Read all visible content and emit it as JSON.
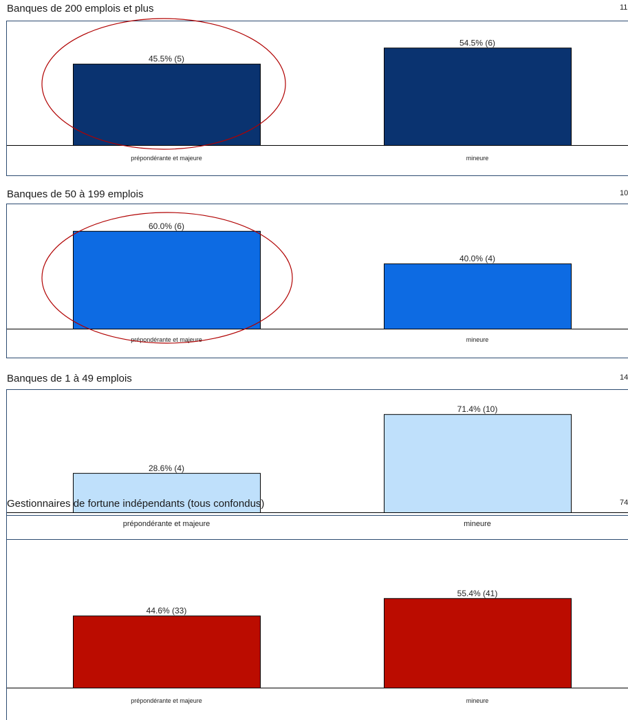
{
  "colors": {
    "frame": "#2b4a70",
    "axis": "#000000",
    "annotation": "#b00000"
  },
  "chart_data": [
    {
      "type": "bar",
      "title": "Banques de 200 emplois et plus",
      "n_label": "11",
      "categories": [
        "prépondérante et majeure",
        "mineure"
      ],
      "values": [
        45.5,
        54.5
      ],
      "counts": [
        5,
        6
      ],
      "labels": [
        "45.5% (5)",
        "54.5% (6)"
      ],
      "color": "#0a3370",
      "circled": true
    },
    {
      "type": "bar",
      "title": "Banques de 50 à 199 emplois",
      "n_label": "10",
      "categories": [
        "prépondérante et majeure",
        "mineure"
      ],
      "values": [
        60.0,
        40.0
      ],
      "counts": [
        6,
        4
      ],
      "labels": [
        "60.0% (6)",
        "40.0% (4)"
      ],
      "color": "#0d6be3",
      "circled": true
    },
    {
      "type": "bar",
      "title": "Banques de 1 à 49 emplois",
      "n_label": "14",
      "categories": [
        "prépondérante et majeure",
        "mineure"
      ],
      "values": [
        28.6,
        71.4
      ],
      "counts": [
        4,
        10
      ],
      "labels": [
        "28.6% (4)",
        "71.4% (10)"
      ],
      "color": "#bfe0fb",
      "circled": false
    },
    {
      "type": "bar",
      "title": "Gestionnaires de fortune indépendants (tous confondus)",
      "n_label": "74",
      "categories": [
        "prépondérante et majeure",
        "mineure"
      ],
      "values": [
        44.6,
        55.4
      ],
      "counts": [
        33,
        41
      ],
      "labels": [
        "44.6% (33)",
        "55.4% (41)"
      ],
      "color": "#bb0c00",
      "circled": false
    }
  ]
}
